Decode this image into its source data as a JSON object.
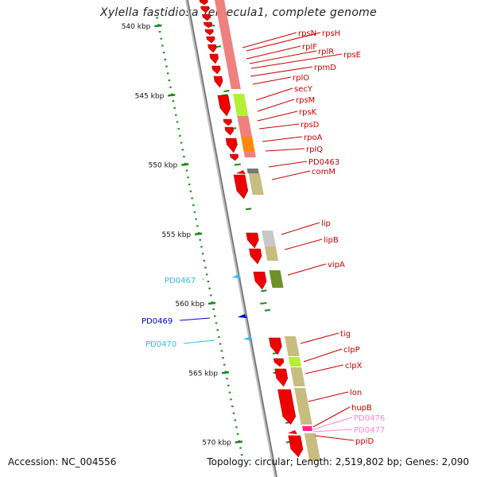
{
  "title": "Xylella fastidiosa Temecula1, complete genome",
  "footer": {
    "accession": "Accession: NC_004556",
    "summary": "Topology: circular; Length: 2,519,802 bp; Genes: 2,090"
  },
  "colors": {
    "forward_gene": "#ee0000",
    "cds_pink": "#f08080",
    "cds_tan": "#c8bd80",
    "cds_lime": "#b4f034",
    "cds_orange": "#ff8800",
    "cds_olive": "#6e9228",
    "cds_gray": "#c8c8c8",
    "backbone": "#8a8a8a",
    "tick": "#1a8a1a",
    "label_red": "#cc0000",
    "label_cyan": "#33bbee",
    "label_blue": "#0000cc",
    "label_pink": "#ff88cc"
  },
  "scale_ticks": [
    {
      "kbp": 540,
      "label": "540 kbp"
    },
    {
      "kbp": 545,
      "label": "545 kbp"
    },
    {
      "kbp": 550,
      "label": "550 kbp"
    },
    {
      "kbp": 555,
      "label": "555 kbp"
    },
    {
      "kbp": 560,
      "label": "560 kbp"
    },
    {
      "kbp": 565,
      "label": "565 kbp"
    },
    {
      "kbp": 570,
      "label": "570 kbp"
    }
  ],
  "genes": [
    {
      "name": "rpsN",
      "color": "label_red",
      "kbp": 542.5
    },
    {
      "name": "rpsH",
      "color": "label_red",
      "kbp": 542.6
    },
    {
      "name": "rplF",
      "color": "label_red",
      "kbp": 543.0
    },
    {
      "name": "rplR",
      "color": "label_red",
      "kbp": 543.4
    },
    {
      "name": "rpsE",
      "color": "label_red",
      "kbp": 543.6
    },
    {
      "name": "rpmD",
      "color": "label_red",
      "kbp": 544.0
    },
    {
      "name": "rplO",
      "color": "label_red",
      "kbp": 544.4
    },
    {
      "name": "secY",
      "color": "label_red",
      "kbp": 545.5
    },
    {
      "name": "rpsM",
      "color": "label_red",
      "kbp": 546.4
    },
    {
      "name": "rpsK",
      "color": "label_red",
      "kbp": 546.8
    },
    {
      "name": "rpsD",
      "color": "label_red",
      "kbp": 547.3
    },
    {
      "name": "rpoA",
      "color": "label_red",
      "kbp": 548.3
    },
    {
      "name": "rplQ",
      "color": "label_red",
      "kbp": 549.0
    },
    {
      "name": "PD0463",
      "color": "label_red",
      "kbp": 549.9
    },
    {
      "name": "comM",
      "color": "label_red",
      "kbp": 551.0
    },
    {
      "name": "lip",
      "color": "label_red",
      "kbp": 554.8
    },
    {
      "name": "lipB",
      "color": "label_red",
      "kbp": 555.8
    },
    {
      "name": "vipA",
      "color": "label_red",
      "kbp": 557.7
    },
    {
      "name": "PD0467",
      "color": "label_cyan",
      "kbp": 558.6
    },
    {
      "name": "PD0469",
      "color": "label_blue",
      "kbp": 561.0
    },
    {
      "name": "PD0470",
      "color": "label_cyan",
      "kbp": 562.5
    },
    {
      "name": "tig",
      "color": "label_red",
      "kbp": 563.3
    },
    {
      "name": "clpP",
      "color": "label_red",
      "kbp": 564.3
    },
    {
      "name": "clpX",
      "color": "label_red",
      "kbp": 565.0
    },
    {
      "name": "lon",
      "color": "label_red",
      "kbp": 567.2
    },
    {
      "name": "hupB",
      "color": "label_red",
      "kbp": 568.5
    },
    {
      "name": "PD0476",
      "color": "label_pink",
      "kbp": 569.0
    },
    {
      "name": "PD0477",
      "color": "label_pink",
      "kbp": 569.2
    },
    {
      "name": "ppiD",
      "color": "label_red",
      "kbp": 570.1
    }
  ]
}
